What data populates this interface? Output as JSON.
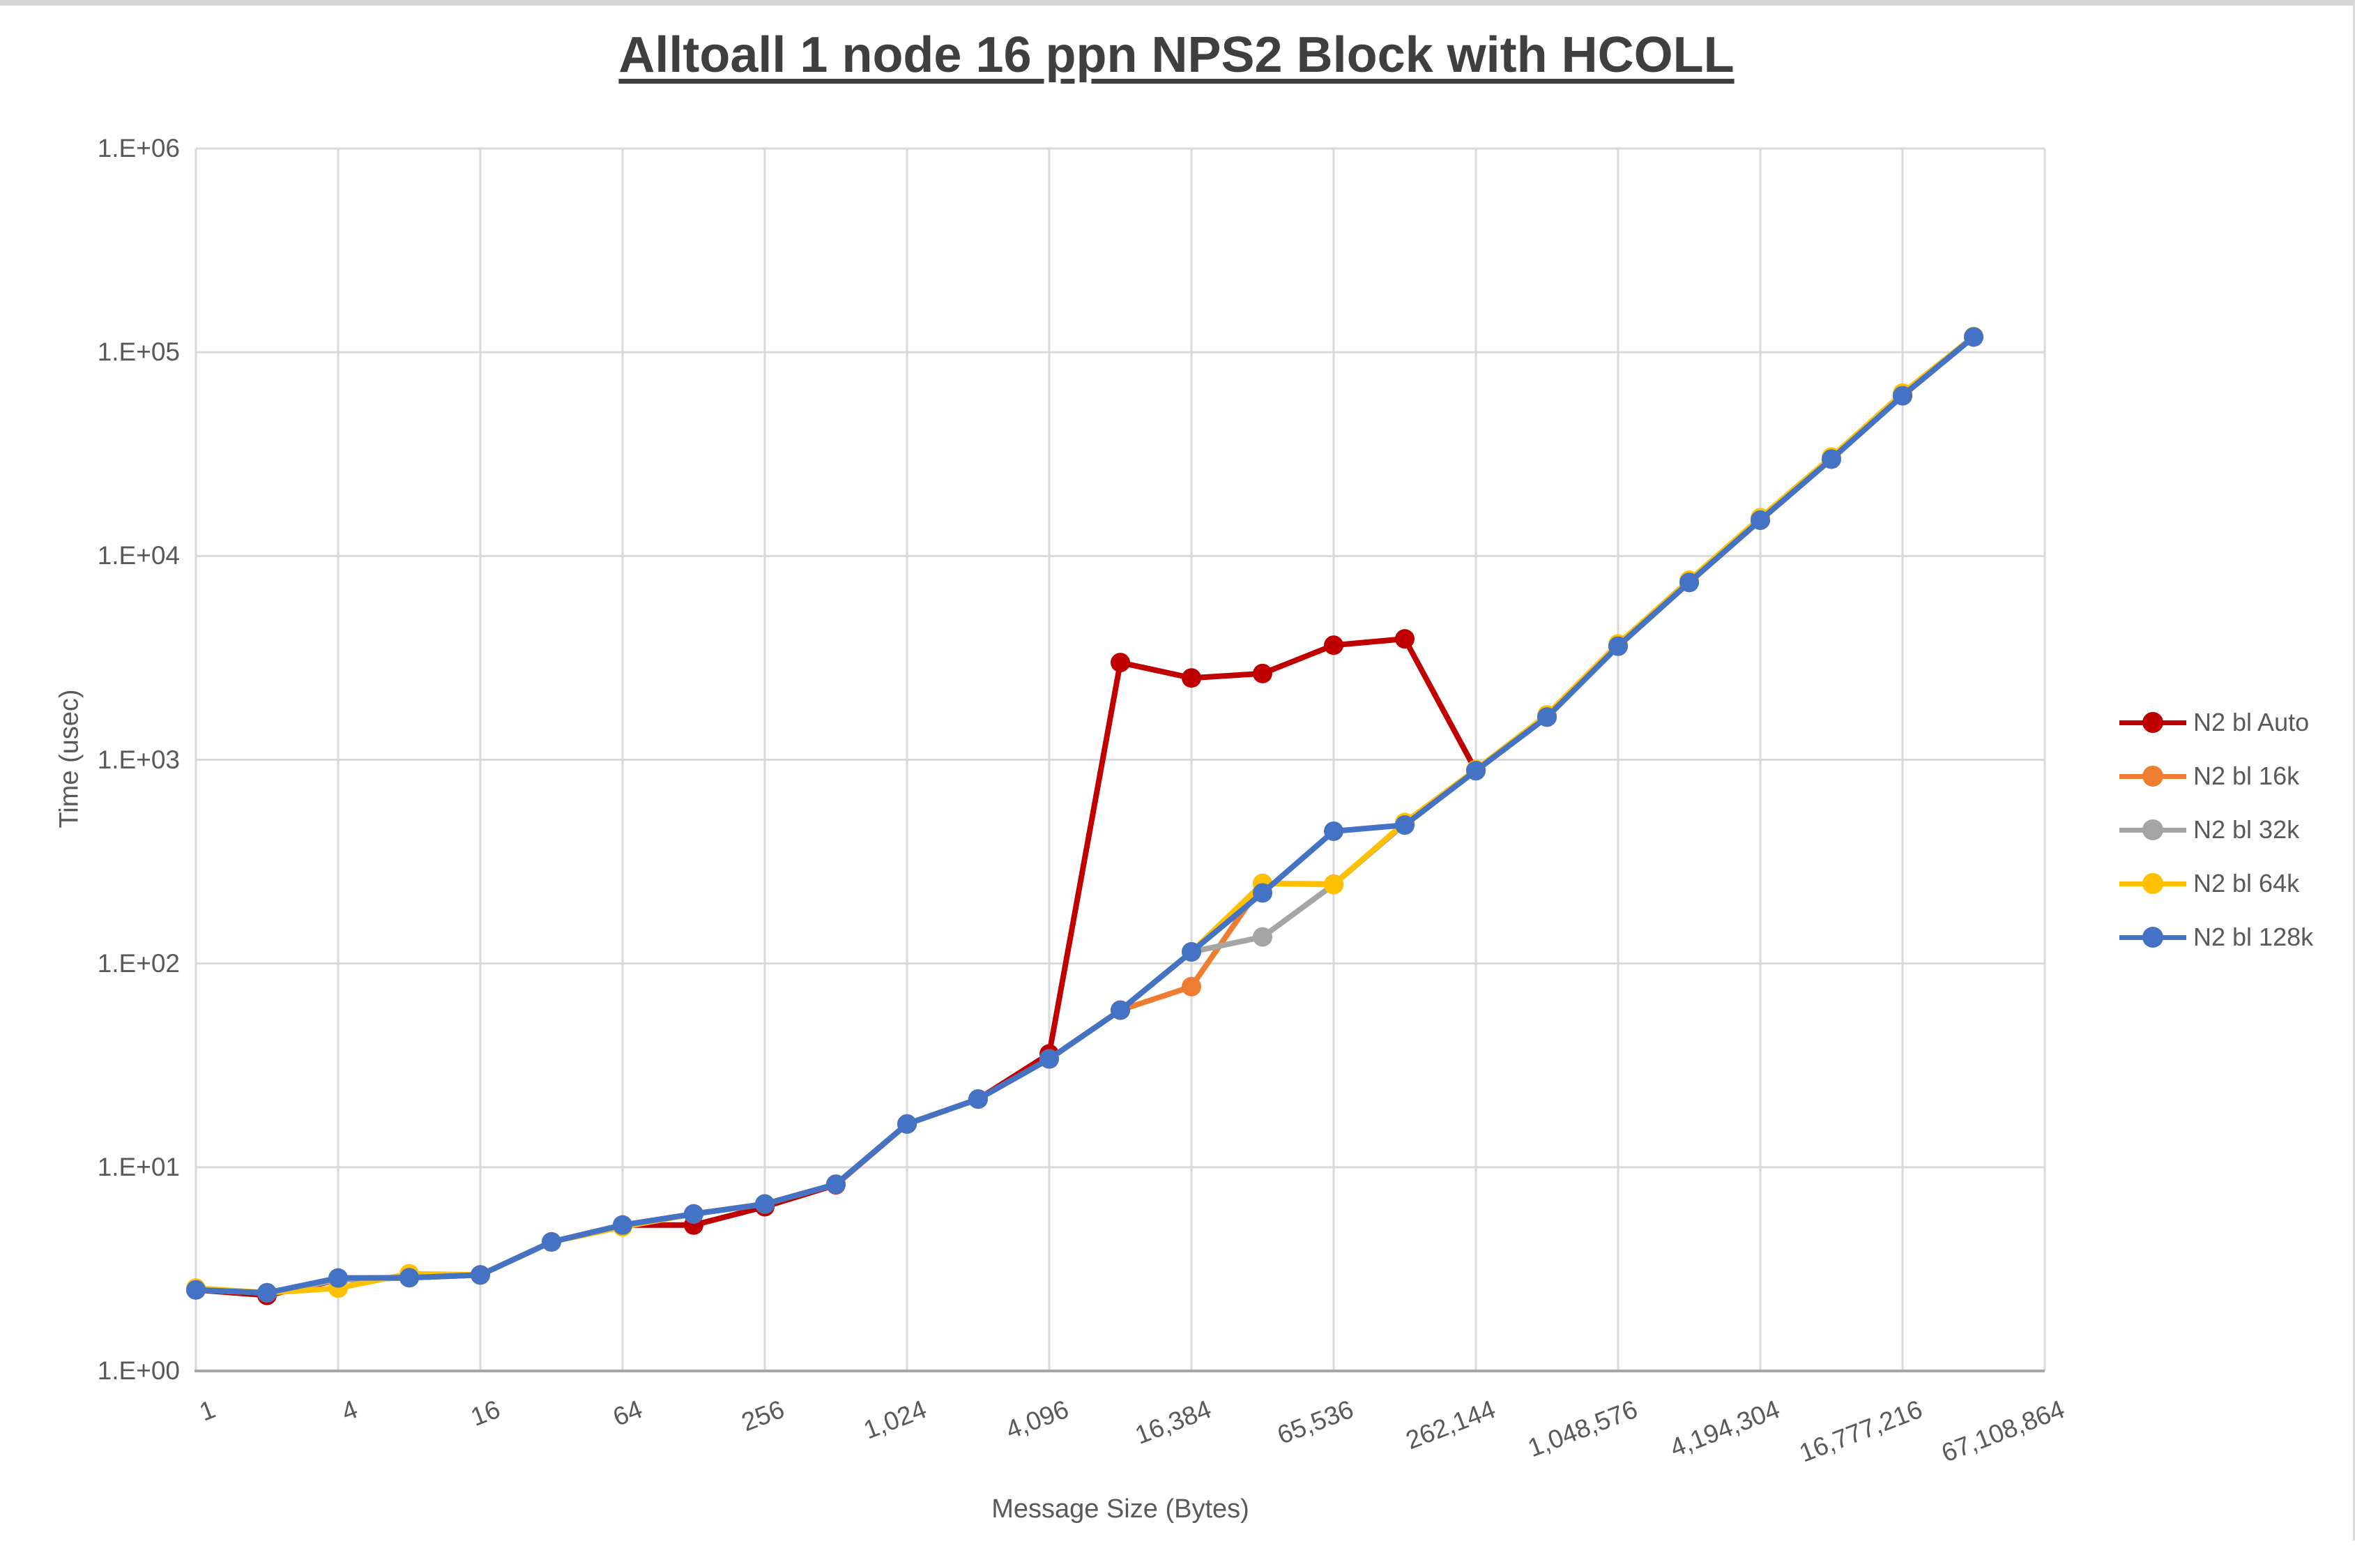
{
  "title": "Alltoall 1 node 16 ppn NPS2 Block with HCOLL",
  "axes": {
    "x_title": "Message Size (Bytes)",
    "y_title": "Time (usec)",
    "y_tick_labels": [
      "1.E+00",
      "1.E+01",
      "1.E+02",
      "1.E+03",
      "1.E+04",
      "1.E+05",
      "1.E+06"
    ],
    "x_tick_labels": [
      "1",
      "4",
      "16",
      "64",
      "256",
      "1,024",
      "4,096",
      "16,384",
      "65,536",
      "262,144",
      "1,048,576",
      "4,194,304",
      "16,777,216",
      "67,108,864"
    ]
  },
  "legend": {
    "items": [
      {
        "label": "N2 bl Auto",
        "color": "#C00000"
      },
      {
        "label": "N2 bl 16k",
        "color": "#ED7D31"
      },
      {
        "label": "N2 bl 32k",
        "color": "#A5A5A5"
      },
      {
        "label": "N2 bl 64k",
        "color": "#FFC000"
      },
      {
        "label": "N2 bl 128k",
        "color": "#4472C4"
      }
    ]
  },
  "colors": {
    "gridline": "#D9D9D9",
    "axis_line": "#A6A6A6",
    "tick_text": "#595959",
    "title_text": "#3F3F3F"
  },
  "chart_data": {
    "type": "line",
    "title": "Alltoall 1 node 16 ppn NPS2 Block with HCOLL",
    "xlabel": "Message Size (Bytes)",
    "ylabel": "Time (usec)",
    "x_scale": "log2",
    "y_scale": "log10",
    "xlim": [
      1,
      67108864
    ],
    "ylim": [
      1,
      1000000
    ],
    "grid": true,
    "legend_position": "right",
    "x": [
      1,
      2,
      4,
      8,
      16,
      32,
      64,
      128,
      256,
      512,
      1024,
      2048,
      4096,
      8192,
      16384,
      32768,
      65536,
      131072,
      262144,
      524288,
      1048576,
      2097152,
      4194304,
      8388608,
      16777216,
      33554432
    ],
    "series": [
      {
        "name": "N2 bl Auto",
        "color": "#C00000",
        "values": [
          2.5,
          2.35,
          2.8,
          2.87,
          2.96,
          4.3,
          5.2,
          5.2,
          6.4,
          8.2,
          16.3,
          21.6,
          36,
          3000,
          2520,
          2650,
          3650,
          3920,
          884,
          1620,
          3610,
          7420,
          15000,
          29900,
          61200,
          118900
        ]
      },
      {
        "name": "N2 bl 16k",
        "color": "#ED7D31",
        "values": [
          2.5,
          2.42,
          2.8,
          2.87,
          2.96,
          4.3,
          5.2,
          5.9,
          6.6,
          8.25,
          16.3,
          21.6,
          34,
          59,
          77,
          247,
          245,
          485,
          884,
          1620,
          3610,
          7420,
          15000,
          29900,
          61200,
          118900
        ]
      },
      {
        "name": "N2 bl 32k",
        "color": "#A5A5A5",
        "values": [
          2.5,
          2.42,
          2.8,
          2.87,
          2.96,
          4.3,
          5.2,
          5.9,
          6.6,
          8.25,
          16.3,
          21.6,
          34,
          59,
          114,
          135,
          244,
          485,
          884,
          1620,
          3610,
          7420,
          15000,
          29900,
          61200,
          118900
        ]
      },
      {
        "name": "N2 bl 64k",
        "color": "#FFC000",
        "values": [
          2.55,
          2.42,
          2.55,
          3.0,
          2.96,
          4.3,
          5.1,
          5.9,
          6.6,
          8.25,
          16.3,
          21.6,
          34,
          59,
          114,
          247,
          244,
          492,
          895,
          1660,
          3700,
          7600,
          15400,
          30600,
          63000,
          119500
        ]
      },
      {
        "name": "N2 bl 128k",
        "color": "#4472C4",
        "values": [
          2.5,
          2.42,
          2.86,
          2.87,
          2.96,
          4.3,
          5.2,
          5.9,
          6.6,
          8.25,
          16.3,
          21.6,
          34,
          59,
          114,
          222,
          446,
          478,
          884,
          1620,
          3610,
          7420,
          15000,
          29900,
          61200,
          118900
        ]
      }
    ]
  }
}
